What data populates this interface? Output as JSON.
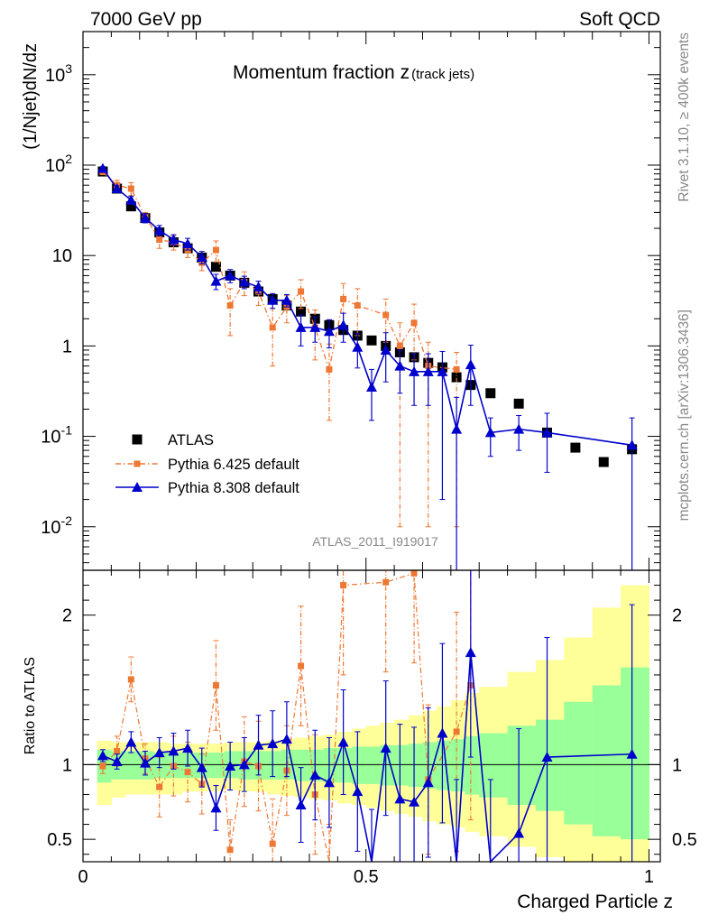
{
  "header": {
    "left": "7000 GeV pp",
    "right": "Soft QCD"
  },
  "side": {
    "rivet": "Rivet 3.1.10, ≥ 400k events",
    "mcplots": "mcplots.cern.ch [arXiv:1306.3436]"
  },
  "chart_data": [
    {
      "type": "scatter",
      "panel": "main",
      "title_main": "Momentum fraction z",
      "title_sub": "(track jets)",
      "analysis_label": "ATLAS_2011_I919017",
      "ylabel": "(1/Njet)dN/dz",
      "yscale": "log",
      "ylim": [
        0.0033,
        3000
      ],
      "xlim": [
        0,
        1.02
      ],
      "y_tick_labels": [
        "10^-2",
        "10^-1",
        "1",
        "10",
        "10^2",
        "10^3"
      ],
      "legend_position": "bottom-left",
      "series": [
        {
          "name": "ATLAS",
          "color": "#000000",
          "marker": "square",
          "x": [
            0.035,
            0.06,
            0.085,
            0.11,
            0.135,
            0.16,
            0.185,
            0.21,
            0.235,
            0.26,
            0.285,
            0.31,
            0.335,
            0.36,
            0.385,
            0.41,
            0.435,
            0.46,
            0.485,
            0.51,
            0.535,
            0.56,
            0.585,
            0.61,
            0.635,
            0.66,
            0.685,
            0.72,
            0.77,
            0.82,
            0.87,
            0.92,
            0.97
          ],
          "y": [
            85,
            55,
            35,
            26,
            18,
            14,
            12,
            9.5,
            7.5,
            6,
            5,
            4,
            3.3,
            2.8,
            2.4,
            2,
            1.7,
            1.5,
            1.3,
            1.15,
            1.0,
            0.85,
            0.75,
            0.65,
            0.58,
            0.45,
            0.37,
            0.3,
            0.23,
            0.11,
            0.075,
            0.052,
            0.072
          ]
        },
        {
          "name": "Pythia 6.425 default",
          "color": "#ee7733",
          "marker": "square",
          "x": [
            0.035,
            0.06,
            0.085,
            0.11,
            0.135,
            0.16,
            0.185,
            0.21,
            0.235,
            0.26,
            0.285,
            0.31,
            0.335,
            0.36,
            0.385,
            0.41,
            0.435,
            0.46,
            0.485,
            0.51,
            0.535,
            0.56,
            0.585,
            0.61,
            0.635,
            0.66,
            0.685
          ],
          "y": [
            84,
            60,
            55,
            27,
            15,
            14,
            11.5,
            8.3,
            11.5,
            2.8,
            5.1,
            4.0,
            1.6,
            2.7,
            4.0,
            1.6,
            0.55,
            3.3,
            2.8,
            null,
            2.2,
            1.0,
            1.8,
            0.6,
            null,
            0.55,
            null
          ],
          "err_lo": [
            4,
            8,
            9,
            3,
            3,
            2.5,
            2,
            1.5,
            3,
            1.5,
            1.5,
            1.2,
            1,
            0.9,
            1.4,
            0.9,
            0.4,
            1.6,
            1.5,
            null,
            1.1,
            0.99,
            1.1,
            0.59,
            null,
            0.54,
            null
          ],
          "err_hi": [
            4,
            8,
            9,
            3,
            3,
            2.5,
            2,
            1.5,
            3,
            1.5,
            1.5,
            1.2,
            1,
            0.9,
            1.4,
            0.9,
            0.5,
            1.6,
            1.5,
            null,
            1.1,
            0.8,
            1.1,
            0.5,
            null,
            0.3,
            null
          ]
        },
        {
          "name": "Pythia 8.308 default",
          "color": "#0000cc",
          "marker": "triangle",
          "x": [
            0.035,
            0.06,
            0.085,
            0.11,
            0.135,
            0.16,
            0.185,
            0.21,
            0.235,
            0.26,
            0.285,
            0.31,
            0.335,
            0.36,
            0.385,
            0.41,
            0.435,
            0.46,
            0.485,
            0.51,
            0.535,
            0.56,
            0.585,
            0.61,
            0.635,
            0.66,
            0.685,
            0.72,
            0.77,
            0.82,
            0.97
          ],
          "y": [
            92,
            55,
            41,
            26,
            19,
            15,
            13.5,
            9.6,
            5.2,
            6.0,
            5.1,
            4.5,
            3.2,
            3.2,
            1.6,
            1.6,
            1.45,
            1.7,
            0.97,
            0.35,
            0.9,
            0.6,
            0.52,
            0.52,
            0.52,
            0.12,
            0.62,
            0.11,
            0.12,
            0.11,
            0.08
          ],
          "err_lo": [
            4,
            4,
            4,
            3,
            2.5,
            2,
            2,
            1.5,
            1,
            1,
            0.8,
            0.7,
            0.6,
            0.5,
            0.6,
            0.5,
            0.5,
            0.6,
            0.4,
            0.2,
            0.5,
            0.3,
            0.3,
            0.3,
            0.5,
            0.119,
            0.4,
            0.05,
            0.05,
            0.07,
            0.079
          ],
          "err_hi": [
            4,
            4,
            4,
            3,
            2.5,
            2,
            2,
            1.5,
            1,
            1,
            0.8,
            0.7,
            0.6,
            0.5,
            0.6,
            0.5,
            0.5,
            0.6,
            0.4,
            0.2,
            0.5,
            0.3,
            0.3,
            0.3,
            0.35,
            0.15,
            0.4,
            0.05,
            0.05,
            0.07,
            0.08
          ]
        }
      ]
    },
    {
      "type": "scatter",
      "panel": "ratio",
      "ylabel": "Ratio to ATLAS",
      "xlabel": "Charged Particle z",
      "ylim": [
        0.35,
        2.3
      ],
      "xlim": [
        0,
        1.02
      ],
      "x_tick_labels": [
        "0",
        "0.5",
        "1"
      ],
      "y_tick_labels": [
        "0.5",
        "1",
        "2"
      ],
      "bands": {
        "edges": [
          0.025,
          0.05,
          0.075,
          0.1,
          0.125,
          0.15,
          0.175,
          0.2,
          0.225,
          0.25,
          0.275,
          0.3,
          0.325,
          0.35,
          0.375,
          0.4,
          0.425,
          0.45,
          0.475,
          0.5,
          0.525,
          0.55,
          0.575,
          0.6,
          0.625,
          0.65,
          0.675,
          0.7,
          0.75,
          0.8,
          0.85,
          0.9,
          0.95,
          1.0
        ],
        "green_lo": [
          0.88,
          0.9,
          0.9,
          0.9,
          0.91,
          0.91,
          0.91,
          0.91,
          0.91,
          0.91,
          0.9,
          0.9,
          0.9,
          0.9,
          0.89,
          0.89,
          0.88,
          0.88,
          0.87,
          0.87,
          0.86,
          0.86,
          0.85,
          0.84,
          0.83,
          0.82,
          0.8,
          0.78,
          0.73,
          0.69,
          0.6,
          0.52,
          0.5
        ],
        "green_hi": [
          1.1,
          1.09,
          1.09,
          1.09,
          1.08,
          1.08,
          1.08,
          1.08,
          1.08,
          1.09,
          1.09,
          1.09,
          1.09,
          1.1,
          1.1,
          1.1,
          1.11,
          1.11,
          1.12,
          1.12,
          1.13,
          1.13,
          1.14,
          1.15,
          1.16,
          1.17,
          1.19,
          1.21,
          1.26,
          1.3,
          1.42,
          1.53,
          1.65
        ],
        "yellow_lo": [
          0.73,
          0.78,
          0.8,
          0.8,
          0.8,
          0.8,
          0.82,
          0.82,
          0.82,
          0.83,
          0.82,
          0.82,
          0.8,
          0.79,
          0.78,
          0.77,
          0.76,
          0.74,
          0.73,
          0.71,
          0.69,
          0.67,
          0.65,
          0.62,
          0.6,
          0.58,
          0.55,
          0.52,
          0.45,
          0.38,
          0.35,
          0.35,
          0.35
        ],
        "yellow_hi": [
          1.16,
          1.15,
          1.15,
          1.15,
          1.15,
          1.14,
          1.14,
          1.14,
          1.14,
          1.15,
          1.15,
          1.15,
          1.16,
          1.17,
          1.18,
          1.19,
          1.2,
          1.22,
          1.24,
          1.26,
          1.28,
          1.3,
          1.33,
          1.36,
          1.39,
          1.43,
          1.48,
          1.52,
          1.62,
          1.7,
          1.85,
          2.05,
          2.2
        ],
        "green_color": "#99ff99",
        "yellow_color": "#ffff99"
      },
      "series": [
        {
          "name": "Pythia 6.425 default",
          "color": "#ee7733",
          "x": [
            0.035,
            0.06,
            0.085,
            0.11,
            0.135,
            0.16,
            0.185,
            0.21,
            0.235,
            0.26,
            0.285,
            0.31,
            0.335,
            0.36,
            0.385,
            0.41,
            0.435,
            0.46,
            0.485,
            0.51,
            0.535,
            0.56,
            0.585,
            0.61,
            0.635,
            0.66,
            0.685
          ],
          "y": [
            0.99,
            1.09,
            1.57,
            1.04,
            0.85,
            0.99,
            0.95,
            0.87,
            1.53,
            0.43,
            1.02,
            0.99,
            0.47,
            0.96,
            1.66,
            0.8,
            0.3,
            2.2,
            null,
            null,
            2.22,
            null,
            2.28,
            0.9,
            null,
            1.22,
            1.53
          ],
          "err": [
            0.05,
            0.1,
            0.15,
            0.1,
            0.2,
            0.2,
            0.2,
            0.2,
            0.3,
            0.2,
            0.3,
            0.3,
            0.3,
            0.3,
            0.4,
            0.4,
            0.3,
            0.6,
            null,
            null,
            0.6,
            null,
            0.6,
            0.5,
            null,
            0.8,
            0.9
          ]
        },
        {
          "name": "Pythia 8.308 default",
          "color": "#0000cc",
          "x": [
            0.035,
            0.06,
            0.085,
            0.11,
            0.135,
            0.16,
            0.185,
            0.21,
            0.235,
            0.26,
            0.285,
            0.31,
            0.335,
            0.36,
            0.385,
            0.41,
            0.435,
            0.46,
            0.485,
            0.51,
            0.535,
            0.56,
            0.585,
            0.61,
            0.635,
            0.66,
            0.685,
            0.72,
            0.77,
            0.82,
            0.97
          ],
          "y": [
            1.06,
            1.02,
            1.15,
            1.01,
            1.08,
            1.09,
            1.11,
            0.98,
            0.71,
            0.99,
            1.0,
            1.13,
            1.14,
            1.17,
            0.73,
            0.93,
            0.88,
            1.15,
            0.82,
            0.3,
            1.11,
            0.77,
            0.75,
            0.88,
            1.21,
            0.3,
            1.75,
            0.3,
            0.54,
            1.05,
            1.07
          ],
          "err": [
            0.04,
            0.05,
            0.07,
            0.08,
            0.1,
            0.12,
            0.12,
            0.13,
            0.15,
            0.16,
            0.18,
            0.2,
            0.22,
            0.25,
            0.25,
            0.3,
            0.3,
            0.35,
            0.4,
            0.4,
            0.45,
            0.5,
            0.5,
            0.5,
            0.6,
            0.6,
            0.7,
            0.6,
            0.7,
            0.8,
            1.0
          ]
        }
      ]
    }
  ]
}
